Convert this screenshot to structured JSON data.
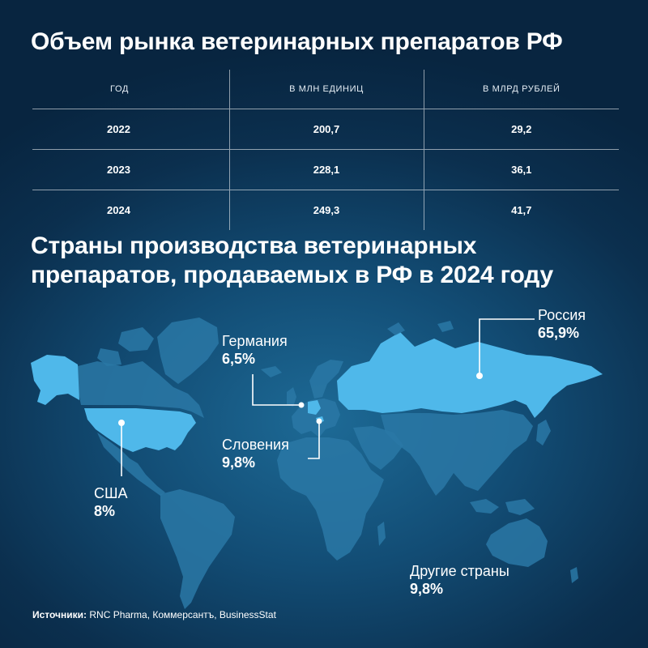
{
  "title": "Объем рынка ветеринарных препаратов РФ",
  "table": {
    "headers": [
      "ГОД",
      "В МЛН ЕДИНИЦ",
      "В МЛРД РУБЛЕЙ"
    ],
    "rows": [
      [
        "2022",
        "200,7",
        "29,2"
      ],
      [
        "2023",
        "228,1",
        "36,1"
      ],
      [
        "2024",
        "249,3",
        "41,7"
      ]
    ]
  },
  "subtitle": "Страны производства ветеринарных\nпрепаратов, продаваемых в РФ в 2024 году",
  "map_labels": {
    "russia": {
      "name": "Россия",
      "pct": "65,9%"
    },
    "germany": {
      "name": "Германия",
      "pct": "6,5%"
    },
    "slovenia": {
      "name": "Словения",
      "pct": "9,8%"
    },
    "usa": {
      "name": "США",
      "pct": "8%"
    },
    "other": {
      "name": "Другие страны",
      "pct": "9,8%"
    }
  },
  "source": {
    "label": "Источники:",
    "text": " RNC Pharma, Коммерсантъ, BusinessStat"
  },
  "colors": {
    "background": "#0b2f4e",
    "land": "#2a78a6",
    "highlight": "#4fb8ea",
    "text": "#ffffff"
  },
  "chart_data": [
    {
      "type": "table",
      "title": "Объем рынка ветеринарных препаратов РФ",
      "columns": [
        "ГОД",
        "В МЛН ЕДИНИЦ",
        "В МЛРД РУБЛЕЙ"
      ],
      "x": [
        2022,
        2023,
        2024
      ],
      "series": [
        {
          "name": "В МЛН ЕДИНИЦ",
          "values": [
            200.7,
            228.1,
            249.3
          ]
        },
        {
          "name": "В МЛРД РУБЛЕЙ",
          "values": [
            29.2,
            36.1,
            41.7
          ]
        }
      ]
    },
    {
      "type": "pie",
      "title": "Страны производства ветеринарных препаратов, продаваемых в РФ в 2024 году",
      "categories": [
        "Россия",
        "Германия",
        "Словения",
        "США",
        "Другие страны"
      ],
      "values": [
        65.9,
        6.5,
        9.8,
        8,
        9.8
      ],
      "unit": "%"
    }
  ]
}
